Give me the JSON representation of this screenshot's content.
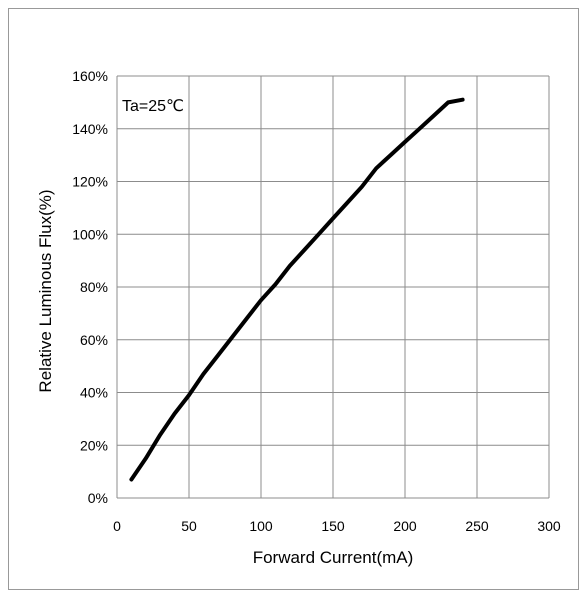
{
  "chart_data": {
    "type": "line",
    "title": "",
    "xlabel": "Forward Current(mA)",
    "ylabel": "Relative Luminous Flux(%)",
    "annotation": "Ta=25℃",
    "xlim": [
      0,
      300
    ],
    "ylim": [
      0,
      160
    ],
    "x_ticks": [
      "0",
      "50",
      "100",
      "150",
      "200",
      "250",
      "300"
    ],
    "y_ticks": [
      "0%",
      "20%",
      "40%",
      "60%",
      "80%",
      "100%",
      "120%",
      "140%",
      "160%"
    ],
    "grid": true,
    "legend": "none",
    "series": [
      {
        "color": "#000000",
        "x": [
          10,
          20,
          30,
          40,
          50,
          60,
          70,
          80,
          90,
          100,
          110,
          120,
          130,
          140,
          150,
          160,
          170,
          180,
          190,
          200,
          210,
          220,
          230,
          240
        ],
        "y": [
          7,
          15,
          24,
          32,
          39,
          47,
          54,
          61,
          68,
          75,
          81,
          88,
          94,
          100,
          106,
          112,
          118,
          125,
          130,
          135,
          140,
          145,
          150,
          151
        ]
      }
    ]
  }
}
